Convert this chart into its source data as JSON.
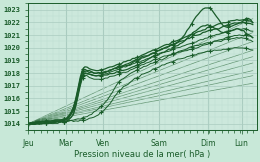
{
  "xlabel": "Pression niveau de la mer( hPa )",
  "background_color": "#c8e8d8",
  "plot_bg_color": "#cce8dc",
  "grid_major_color": "#aaccc0",
  "grid_minor_color": "#bbddd0",
  "line_color": "#1a5c2a",
  "ylim": [
    1013.5,
    1023.5
  ],
  "yticks": [
    1014,
    1015,
    1016,
    1017,
    1018,
    1019,
    1020,
    1021,
    1022,
    1023
  ],
  "xtick_labels": [
    "Jeu",
    "Mar",
    "Ven",
    "Sam",
    "Dim",
    "Lun"
  ],
  "xtick_positions": [
    0.0,
    1.0,
    2.0,
    3.5,
    4.8,
    5.7
  ],
  "xlim": [
    0.0,
    6.1
  ]
}
